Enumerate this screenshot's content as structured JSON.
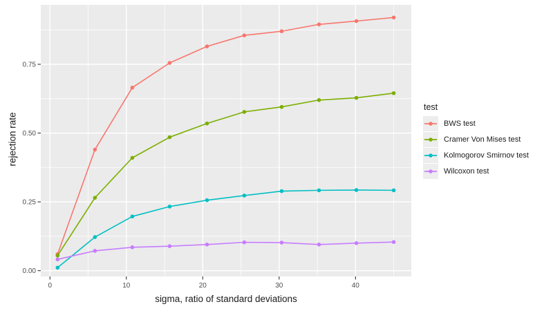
{
  "chart_data": {
    "type": "line",
    "xlabel": "sigma, ratio of standard deviations",
    "ylabel": "rejection rate",
    "legend_title": "test",
    "legend_position": "right",
    "grid": true,
    "xlim": [
      -1.2,
      47.3
    ],
    "ylim": [
      -0.021,
      0.966
    ],
    "x_ticks": [
      0,
      10,
      20,
      30,
      40
    ],
    "x_tick_labels": [
      "0",
      "10",
      "20",
      "30",
      "40"
    ],
    "y_ticks": [
      0.0,
      0.25,
      0.5,
      0.75
    ],
    "y_tick_labels": [
      "0.00",
      "0.25",
      "0.50",
      "0.75"
    ],
    "x_minor_ticks": [
      5,
      15,
      25,
      35,
      45
    ],
    "y_minor_ticks": [
      0.125,
      0.375,
      0.625,
      0.875
    ],
    "x": [
      1,
      5.89,
      10.78,
      15.67,
      20.56,
      25.44,
      30.33,
      35.22,
      40.11,
      45
    ],
    "series": [
      {
        "name": "BWS test",
        "color": "#F8766D",
        "values": [
          0.06,
          0.44,
          0.665,
          0.755,
          0.815,
          0.855,
          0.87,
          0.895,
          0.907,
          0.92
        ]
      },
      {
        "name": "Cramer Von Mises test",
        "color": "#7CAE00",
        "values": [
          0.055,
          0.265,
          0.41,
          0.485,
          0.535,
          0.577,
          0.595,
          0.62,
          0.628,
          0.645
        ]
      },
      {
        "name": "Kolmogorov Smirnov test",
        "color": "#00BFC4",
        "values": [
          0.011,
          0.122,
          0.197,
          0.233,
          0.256,
          0.273,
          0.289,
          0.292,
          0.293,
          0.292
        ]
      },
      {
        "name": "Wilcoxon test",
        "color": "#C77CFF",
        "values": [
          0.041,
          0.072,
          0.085,
          0.089,
          0.095,
          0.103,
          0.102,
          0.095,
          0.1,
          0.104
        ]
      }
    ],
    "theme": {
      "panel_background": "#EBEBEB",
      "grid_major_color": "#FFFFFF",
      "grid_minor_color": "#FFFFFF",
      "axis_tick_label_color": "#4D4D4D",
      "axis_title_color": "#1A1A1A",
      "tick_mark_color": "#333333",
      "legend_key_background": "#EDEDED"
    }
  }
}
